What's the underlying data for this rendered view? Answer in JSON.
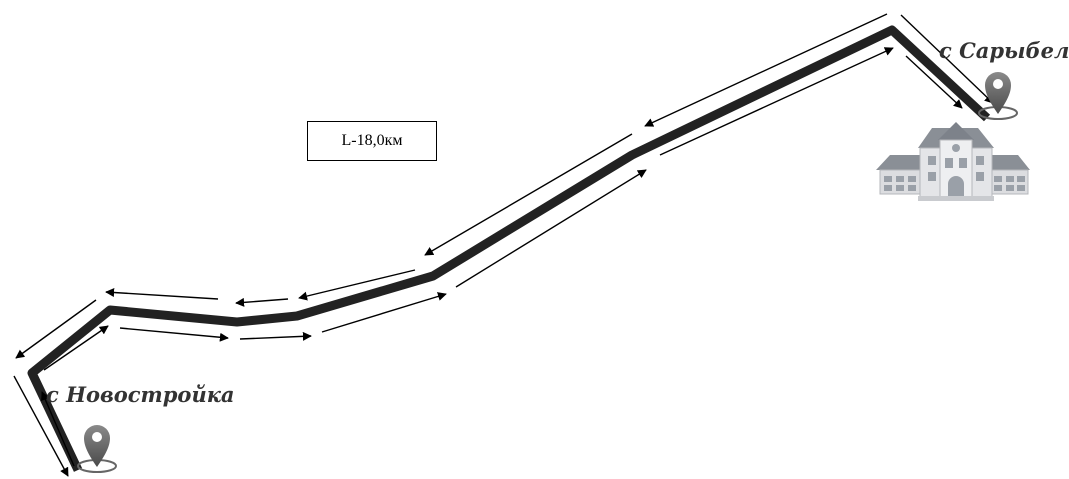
{
  "map": {
    "distance_label": "L-18,0км",
    "places": {
      "start": {
        "label": "с Новостройка",
        "icon": "map-pin-icon"
      },
      "end": {
        "label": "с Сарыбел",
        "icon": "map-pin-icon",
        "building_icon": "school-building-icon"
      }
    },
    "route": {
      "road_color": "#222222",
      "arrow_color": "#000000",
      "direction": "two-way"
    }
  }
}
